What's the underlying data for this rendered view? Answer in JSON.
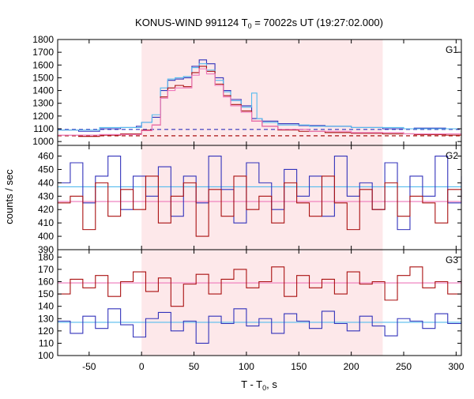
{
  "chart_data": {
    "type": "line",
    "title": "KONUS-WIND 991124 T",
    "title_sub": "0",
    "title_rest": " = 70022s UT (19:27:02.000)",
    "xlabel": "T - T",
    "xlabel_sub": "0",
    "xlabel_rest": ", s",
    "ylabel": "counts / sec",
    "xlim": [
      -80,
      305
    ],
    "xticks": [
      -50,
      0,
      50,
      100,
      150,
      200,
      250,
      300
    ],
    "highlight_interval": [
      0,
      230
    ],
    "colors": {
      "blue": "#3333bb",
      "red": "#aa1111",
      "cyan": "#55bbee",
      "pink": "#ee77bb",
      "shade": "#fde8ea"
    },
    "panels": [
      {
        "id": "G1",
        "label": "G1",
        "ylim": [
          970,
          1800
        ],
        "yticks": [
          1000,
          1100,
          1200,
          1300,
          1400,
          1500,
          1600,
          1700,
          1800
        ],
        "background_levels": [
          {
            "name": "blue-bg",
            "value": 1095,
            "color": "blue",
            "dashed": true
          },
          {
            "name": "red-bg",
            "value": 1045,
            "color": "red",
            "dashed": true
          }
        ],
        "series": [
          {
            "color": "blue",
            "x": [
              -80,
              -60,
              -40,
              -20,
              -5,
              0,
              10,
              18,
              25,
              32,
              40,
              48,
              55,
              62,
              70,
              78,
              85,
              95,
              105,
              115,
              130,
              150,
              175,
              200,
              230,
              260,
              290,
              305
            ],
            "y": [
              1090,
              1080,
              1100,
              1110,
              1120,
              1150,
              1190,
              1400,
              1480,
              1490,
              1500,
              1590,
              1640,
              1610,
              1500,
              1400,
              1330,
              1280,
              1180,
              1160,
              1140,
              1125,
              1120,
              1110,
              1100,
              1105,
              1100,
              1095
            ]
          },
          {
            "color": "cyan",
            "x": [
              -80,
              -40,
              0,
              10,
              18,
              25,
              32,
              40,
              48,
              55,
              62,
              70,
              78,
              85,
              95,
              105,
              110,
              115,
              130,
              160,
              200,
              250,
              305
            ],
            "y": [
              1090,
              1110,
              1150,
              1210,
              1420,
              1490,
              1500,
              1510,
              1580,
              1610,
              1560,
              1480,
              1390,
              1320,
              1270,
              1380,
              1180,
              1150,
              1130,
              1120,
              1110,
              1100,
              1095
            ]
          },
          {
            "color": "red",
            "x": [
              -80,
              -60,
              -40,
              -20,
              0,
              10,
              18,
              25,
              32,
              40,
              48,
              55,
              62,
              70,
              78,
              85,
              95,
              105,
              115,
              130,
              150,
              175,
              200,
              230,
              260,
              290,
              305
            ],
            "y": [
              1050,
              1040,
              1050,
              1060,
              1090,
              1130,
              1350,
              1420,
              1440,
              1430,
              1540,
              1590,
              1550,
              1450,
              1360,
              1290,
              1240,
              1160,
              1120,
              1090,
              1080,
              1070,
              1065,
              1060,
              1055,
              1050,
              1045
            ]
          },
          {
            "color": "pink",
            "x": [
              -80,
              -40,
              0,
              10,
              18,
              25,
              32,
              40,
              48,
              55,
              62,
              70,
              78,
              85,
              95,
              105,
              115,
              130,
              160,
              200,
              250,
              305
            ],
            "y": [
              1050,
              1055,
              1085,
              1130,
              1340,
              1400,
              1420,
              1420,
              1520,
              1570,
              1530,
              1440,
              1350,
              1280,
              1230,
              1160,
              1120,
              1095,
              1080,
              1070,
              1060,
              1050
            ]
          }
        ]
      },
      {
        "id": "G2",
        "label": "G2",
        "ylim": [
          390,
          468
        ],
        "yticks": [
          390,
          400,
          410,
          420,
          430,
          440,
          450,
          460
        ],
        "background_levels": [
          {
            "name": "blue-fit",
            "value": 437,
            "color": "cyan",
            "dashed": false
          },
          {
            "name": "red-fit",
            "value": 426,
            "color": "pink",
            "dashed": false
          }
        ],
        "series": [
          {
            "color": "blue",
            "x": [
              -80,
              -68,
              -56,
              -44,
              -32,
              -20,
              -8,
              4,
              16,
              28,
              40,
              52,
              64,
              76,
              88,
              100,
              112,
              124,
              136,
              148,
              160,
              172,
              184,
              196,
              208,
              220,
              232,
              244,
              256,
              268,
              280,
              292,
              305
            ],
            "y": [
              440,
              455,
              425,
              445,
              460,
              420,
              445,
              430,
              452,
              415,
              445,
              425,
              460,
              435,
              410,
              455,
              440,
              420,
              450,
              430,
              445,
              415,
              460,
              430,
              440,
              420,
              455,
              405,
              445,
              430,
              460,
              425,
              445
            ]
          },
          {
            "color": "red",
            "x": [
              -80,
              -68,
              -56,
              -44,
              -32,
              -20,
              -8,
              4,
              16,
              28,
              40,
              52,
              64,
              76,
              88,
              100,
              112,
              124,
              136,
              148,
              160,
              172,
              184,
              196,
              208,
              220,
              232,
              244,
              256,
              268,
              280,
              292,
              305
            ],
            "y": [
              425,
              430,
              405,
              440,
              415,
              435,
              420,
              445,
              410,
              430,
              440,
              400,
              435,
              415,
              445,
              420,
              430,
              410,
              440,
              425,
              415,
              445,
              425,
              405,
              435,
              420,
              440,
              415,
              430,
              425,
              410,
              435,
              428
            ]
          }
        ]
      },
      {
        "id": "G3",
        "label": "G3",
        "ylim": [
          100,
          186
        ],
        "yticks": [
          100,
          110,
          120,
          130,
          140,
          150,
          160,
          170,
          180
        ],
        "background_levels": [
          {
            "name": "red-fit",
            "value": 159,
            "color": "pink",
            "dashed": false
          },
          {
            "name": "blue-fit",
            "value": 127,
            "color": "cyan",
            "dashed": false
          }
        ],
        "series": [
          {
            "color": "red",
            "x": [
              -80,
              -68,
              -56,
              -44,
              -32,
              -20,
              -8,
              4,
              16,
              28,
              40,
              52,
              64,
              76,
              88,
              100,
              112,
              124,
              136,
              148,
              160,
              172,
              184,
              196,
              208,
              220,
              232,
              244,
              256,
              268,
              280,
              292,
              305
            ],
            "y": [
              150,
              162,
              155,
              165,
              148,
              160,
              168,
              152,
              163,
              140,
              158,
              166,
              150,
              162,
              170,
              155,
              160,
              172,
              148,
              165,
              155,
              162,
              150,
              168,
              158,
              160,
              145,
              165,
              172,
              155,
              160,
              150,
              162
            ]
          },
          {
            "color": "blue",
            "x": [
              -80,
              -68,
              -56,
              -44,
              -32,
              -20,
              -8,
              4,
              16,
              28,
              40,
              52,
              64,
              76,
              88,
              100,
              112,
              124,
              136,
              148,
              160,
              172,
              184,
              196,
              208,
              220,
              232,
              244,
              256,
              268,
              280,
              292,
              305
            ],
            "y": [
              128,
              118,
              132,
              122,
              138,
              125,
              115,
              130,
              135,
              120,
              128,
              110,
              132,
              126,
              138,
              124,
              130,
              118,
              134,
              128,
              122,
              136,
              126,
              120,
              132,
              124,
              116,
              130,
              128,
              122,
              134,
              126,
              128
            ]
          }
        ]
      }
    ]
  }
}
